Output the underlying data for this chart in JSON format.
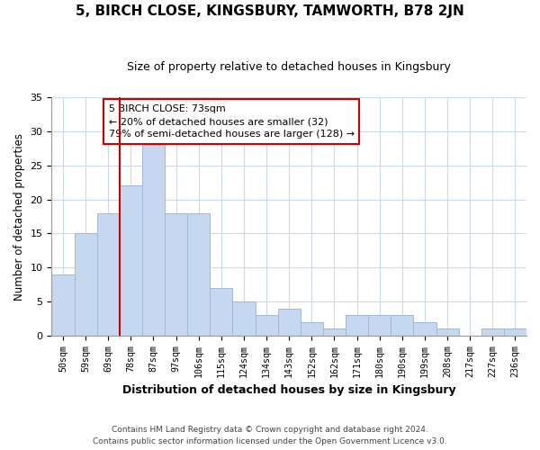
{
  "title": "5, BIRCH CLOSE, KINGSBURY, TAMWORTH, B78 2JN",
  "subtitle": "Size of property relative to detached houses in Kingsbury",
  "xlabel": "Distribution of detached houses by size in Kingsbury",
  "ylabel": "Number of detached properties",
  "bin_labels": [
    "50sqm",
    "59sqm",
    "69sqm",
    "78sqm",
    "87sqm",
    "97sqm",
    "106sqm",
    "115sqm",
    "124sqm",
    "134sqm",
    "143sqm",
    "152sqm",
    "162sqm",
    "171sqm",
    "180sqm",
    "190sqm",
    "199sqm",
    "208sqm",
    "217sqm",
    "227sqm",
    "236sqm"
  ],
  "bar_heights": [
    9,
    15,
    18,
    22,
    28,
    18,
    18,
    7,
    5,
    3,
    4,
    2,
    1,
    3,
    3,
    3,
    2,
    1,
    0,
    1,
    1
  ],
  "bar_color": "#c5d8f0",
  "bar_edge_color": "#a0b8d8",
  "vline_x_index": 2,
  "vline_color": "#cc0000",
  "ylim": [
    0,
    35
  ],
  "yticks": [
    0,
    5,
    10,
    15,
    20,
    25,
    30,
    35
  ],
  "annotation_line1": "5 BIRCH CLOSE: 73sqm",
  "annotation_line2": "← 20% of detached houses are smaller (32)",
  "annotation_line3": "79% of semi-detached houses are larger (128) →",
  "annotation_box_color": "#ffffff",
  "annotation_box_edgecolor": "#cc0000",
  "footer_line1": "Contains HM Land Registry data © Crown copyright and database right 2024.",
  "footer_line2": "Contains public sector information licensed under the Open Government Licence v3.0.",
  "background_color": "#ffffff",
  "grid_color": "#ccd9e8"
}
